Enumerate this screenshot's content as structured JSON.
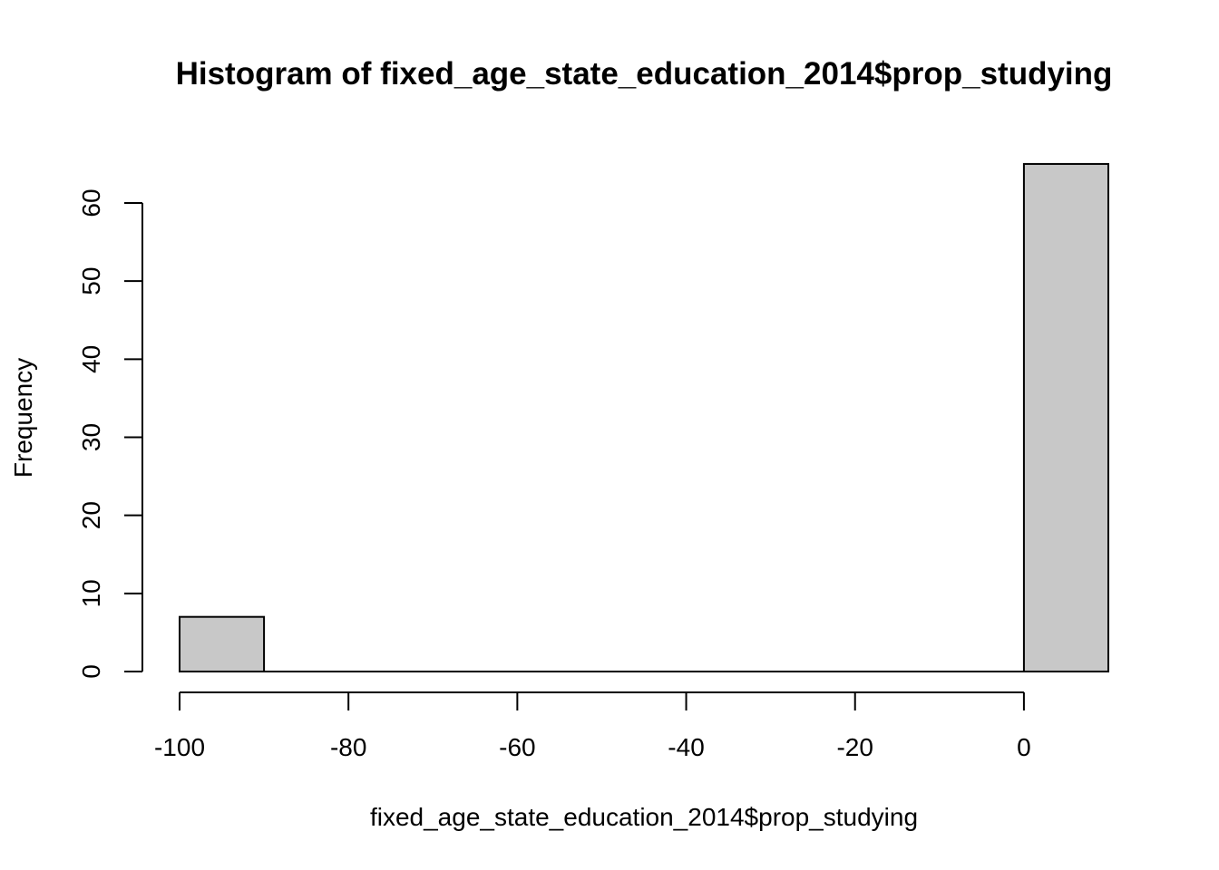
{
  "chart_data": {
    "type": "histogram",
    "title": "Histogram of fixed_age_state_education_2014$prop_studying",
    "xlabel": "fixed_age_state_education_2014$prop_studying",
    "ylabel": "Frequency",
    "bin_width": 10,
    "bins": [
      {
        "start": -100,
        "end": -90,
        "count": 7
      },
      {
        "start": -90,
        "end": -80,
        "count": 0
      },
      {
        "start": -80,
        "end": -70,
        "count": 0
      },
      {
        "start": -70,
        "end": -60,
        "count": 0
      },
      {
        "start": -60,
        "end": -50,
        "count": 0
      },
      {
        "start": -50,
        "end": -40,
        "count": 0
      },
      {
        "start": -40,
        "end": -30,
        "count": 0
      },
      {
        "start": -30,
        "end": -20,
        "count": 0
      },
      {
        "start": -20,
        "end": -10,
        "count": 0
      },
      {
        "start": -10,
        "end": 0,
        "count": 0
      },
      {
        "start": 0,
        "end": 10,
        "count": 65
      }
    ],
    "x_ticks": [
      -100,
      -80,
      -60,
      -40,
      -20,
      0
    ],
    "x_tick_labels": [
      "-100",
      "-80",
      "-60",
      "-40",
      "-20",
      "0"
    ],
    "y_ticks": [
      0,
      10,
      20,
      30,
      40,
      50,
      60
    ],
    "y_tick_labels": [
      "0",
      "10",
      "20",
      "30",
      "40",
      "50",
      "60"
    ],
    "xlim": [
      -100,
      10
    ],
    "ylim": [
      0,
      65
    ],
    "grid": false,
    "colors": {
      "bar_fill": "#c8c8c8",
      "bar_stroke": "#000000"
    }
  }
}
